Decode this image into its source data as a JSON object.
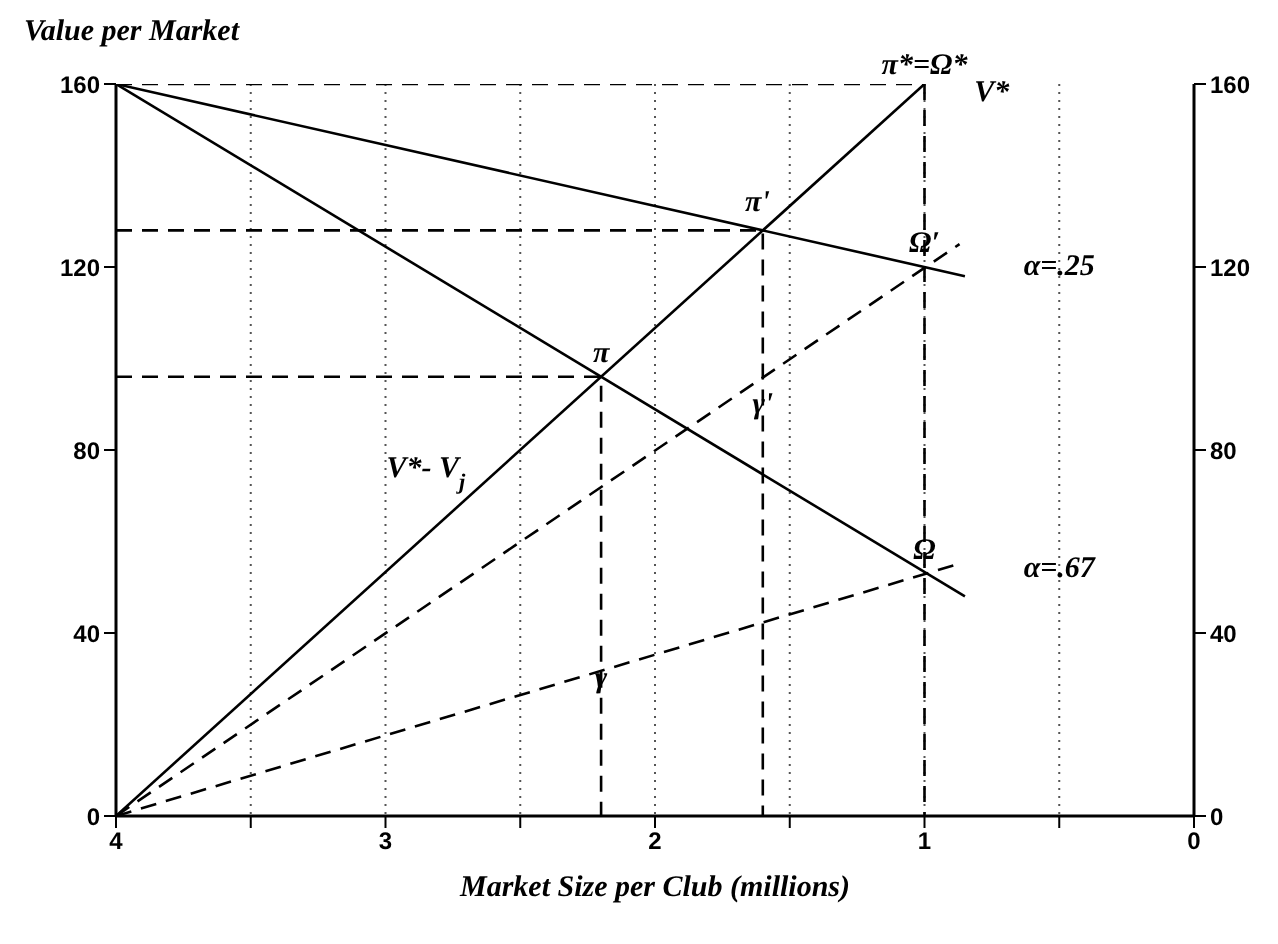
{
  "chart_data": {
    "type": "line",
    "xlabel": "Market Size per Club (millions)",
    "ylabel": "Value per Market",
    "xlim": [
      4,
      0
    ],
    "xticks": [
      4,
      {
        "value": 3.5,
        "label": null
      },
      3,
      {
        "value": 2.5,
        "label": null
      },
      2,
      {
        "value": 1.5,
        "label": null
      },
      1,
      {
        "value": 0.5,
        "label": null
      },
      0
    ],
    "ylim": [
      0,
      160
    ],
    "yticks": [
      0,
      40,
      80,
      120,
      160
    ],
    "y2lim": [
      0,
      160
    ],
    "y2ticks": [
      0,
      40,
      80,
      120,
      160
    ],
    "grid": true,
    "legend": false,
    "marker": "none",
    "series": [
      {
        "color": "#000000",
        "line_style": "dashed",
        "x": [
          4,
          1
        ],
        "values": [
          160,
          160
        ]
      },
      {
        "color": "#000000",
        "line_style": "solid",
        "x": [
          4,
          0.85
        ],
        "values": [
          160,
          118
        ]
      },
      {
        "color": "#000000",
        "line_style": "solid",
        "x": [
          4,
          0.85
        ],
        "values": [
          160,
          48
        ]
      },
      {
        "color": "#000000",
        "line_style": "solid",
        "x": [
          4,
          1
        ],
        "values": [
          0,
          160
        ]
      },
      {
        "color": "#000000",
        "line_style": "dashed",
        "x": [
          4,
          0.87
        ],
        "values": [
          0,
          125
        ]
      },
      {
        "color": "#000000",
        "line_style": "dashed",
        "x": [
          4,
          0.88
        ],
        "values": [
          0,
          55
        ]
      },
      {
        "color": "#000000",
        "line_style": "dashed",
        "x": [
          4,
          1.6,
          1.6
        ],
        "values": [
          128,
          128,
          0
        ]
      },
      {
        "color": "#000000",
        "line_style": "dashed",
        "x": [
          4,
          2.2,
          2.2
        ],
        "values": [
          96,
          96,
          0
        ]
      },
      {
        "color": "#000000",
        "line_style": "dashed",
        "x": [
          1,
          1
        ],
        "values": [
          160,
          0
        ]
      }
    ],
    "annotations": [
      {
        "text": "π*=Ω*",
        "x": 1,
        "y": 160
      },
      "V*",
      {
        "text": "π'",
        "x": 1.62,
        "y": 130
      },
      {
        "text": "Ω′",
        "x": 1,
        "y": 121
      },
      "α=.25",
      {
        "text": "π",
        "x": 2.2,
        "y": 97
      },
      {
        "text": "γ'",
        "x": 1.6,
        "y": 86
      },
      "V*- V$_{j}$",
      {
        "text": "Ω",
        "x": 1,
        "y": 54
      },
      "α=.67",
      {
        "text": "γ",
        "x": 2.2,
        "y": 26
      }
    ]
  }
}
